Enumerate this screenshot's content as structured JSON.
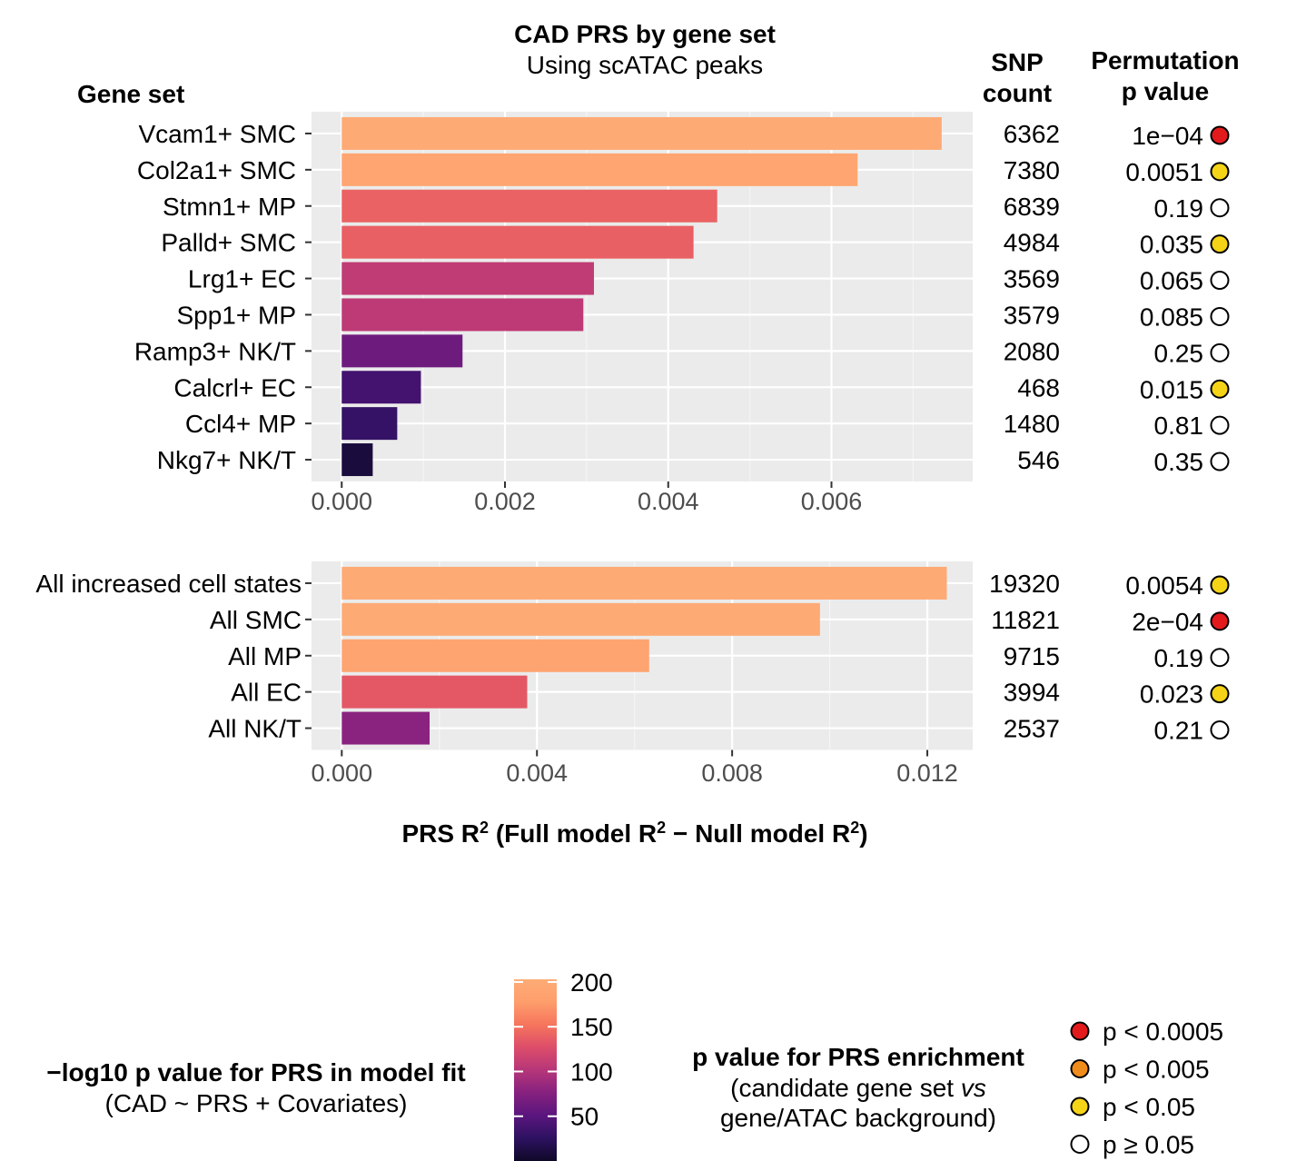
{
  "chart_data": [
    {
      "type": "bar",
      "orientation": "horizontal",
      "title": "CAD PRS by gene set",
      "subtitle": "Using scATAC peaks",
      "ylabel": "Gene set",
      "snp_header": [
        "SNP",
        "count"
      ],
      "pval_header": [
        "Permutation",
        "p value"
      ],
      "xlim": [
        -0.00037,
        0.00773
      ],
      "xticks": [
        0.0,
        0.002,
        0.004,
        0.006
      ],
      "xtick_labels": [
        "0.000",
        "0.002",
        "0.004",
        "0.006"
      ],
      "grid": true,
      "categories": [
        "Vcam1+ SMC",
        "Col2a1+ SMC",
        "Stmn1+ MP",
        "Palld+ SMC",
        "Lrg1+ EC",
        "Spp1+ MP",
        "Ramp3+ NK/T",
        "Calcrl+ EC",
        "Ccl4+ MP",
        "Nkg7+ NK/T"
      ],
      "values": [
        0.00735,
        0.00632,
        0.0046,
        0.00431,
        0.00309,
        0.00296,
        0.00148,
        0.00097,
        0.00068,
        0.00038
      ],
      "color_values": [
        200,
        190,
        140,
        138,
        108,
        106,
        62,
        38,
        30,
        10
      ],
      "snp_counts": [
        "6362",
        "7380",
        "6839",
        "4984",
        "3569",
        "3579",
        "2080",
        "468",
        "1480",
        "546"
      ],
      "p_values": [
        "1e−04",
        "0.0051",
        "0.19",
        "0.035",
        "0.065",
        "0.085",
        "0.25",
        "0.015",
        "0.81",
        "0.35"
      ],
      "p_categories": [
        "p < 0.0005",
        "p < 0.05",
        "p ≥ 0.05",
        "p < 0.05",
        "p ≥ 0.05",
        "p ≥ 0.05",
        "p ≥ 0.05",
        "p < 0.05",
        "p ≥ 0.05",
        "p ≥ 0.05"
      ]
    },
    {
      "type": "bar",
      "orientation": "horizontal",
      "xlabel": "PRS R² (Full model R² − Null model R²)",
      "xlim": [
        -0.00062,
        0.01293
      ],
      "xticks": [
        0.0,
        0.004,
        0.008,
        0.012
      ],
      "xtick_labels": [
        "0.000",
        "0.004",
        "0.008",
        "0.012"
      ],
      "grid": true,
      "categories": [
        "All increased cell states",
        "All SMC",
        "All MP",
        "All EC",
        "All NK/T"
      ],
      "values": [
        0.0124,
        0.0098,
        0.0063,
        0.0038,
        0.0018
      ],
      "color_values": [
        200,
        200,
        188,
        134,
        78
      ],
      "snp_counts": [
        "19320",
        "11821",
        "9715",
        "3994",
        "2537"
      ],
      "p_values": [
        "0.0054",
        "2e−04",
        "0.19",
        "0.023",
        "0.21"
      ],
      "p_categories": [
        "p < 0.05",
        "p < 0.0005",
        "p ≥ 0.05",
        "p < 0.05",
        "p ≥ 0.05"
      ]
    }
  ],
  "colorbar": {
    "title": "−log10 p value for PRS in model fit",
    "subtitle": "(CAD ~ PRS + Covariates)",
    "range": [
      0,
      203
    ],
    "ticks": [
      200,
      150,
      100,
      50
    ],
    "tick_labels": [
      "200",
      "150",
      "100",
      "50"
    ],
    "stops": [
      "#0f0828",
      "#2d1160",
      "#5a167e",
      "#86217f",
      "#b63679",
      "#dd4d6a",
      "#f6755c",
      "#fe9e6c",
      "#fdac76"
    ]
  },
  "p_legend": {
    "title": "p value for PRS enrichment",
    "subtitle_parts": [
      "(candidate gene set ",
      "vs",
      ""
    ],
    "subtitle_line2": "gene/ATAC background)",
    "items": [
      {
        "label": "p < 0.0005",
        "color": "#e31a1c"
      },
      {
        "label": "p < 0.005",
        "color": "#f08c1c"
      },
      {
        "label": "p < 0.05",
        "color": "#f5d316"
      },
      {
        "label": "p ≥ 0.05",
        "color": "#ffffff"
      }
    ]
  },
  "colors": {
    "panel_bg": "#ebebeb",
    "grid_major": "#ffffff",
    "grid_minor": "#f5f5f5",
    "axis_text": "#4d4d4d"
  }
}
